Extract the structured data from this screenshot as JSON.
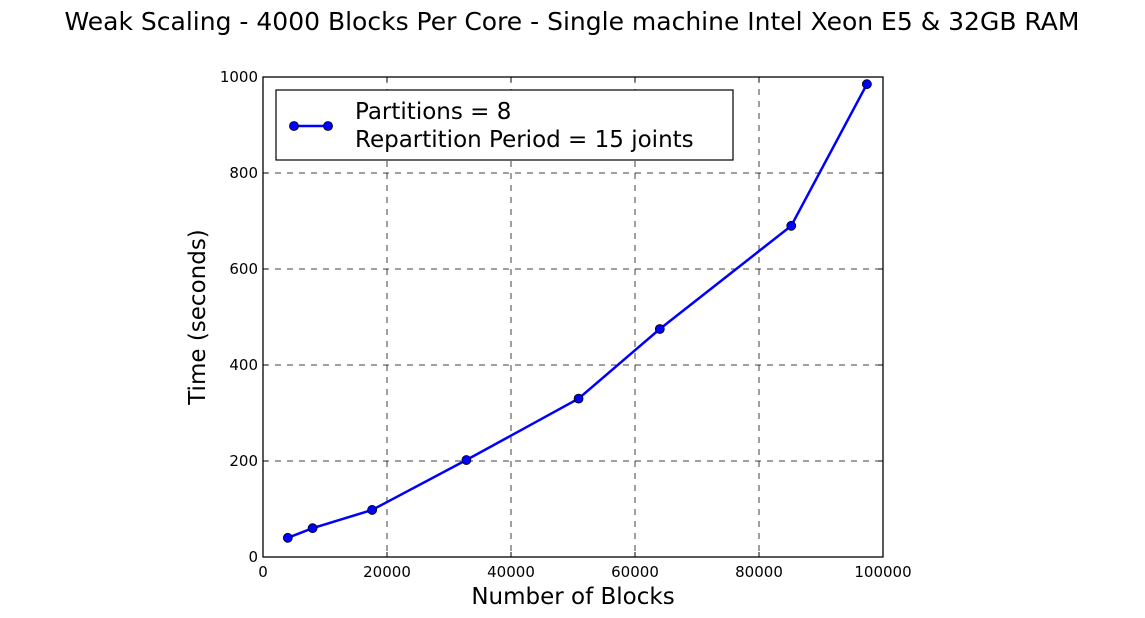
{
  "chart_data": {
    "type": "line",
    "title": "Weak Scaling - 4000 Blocks Per Core - Single machine Intel Xeon E5 & 32GB RAM",
    "xlabel": "Number of Blocks",
    "ylabel": "Time (seconds)",
    "xlim": [
      0,
      100000
    ],
    "ylim": [
      0,
      1000
    ],
    "xticks": [
      0,
      20000,
      40000,
      60000,
      80000,
      100000
    ],
    "yticks": [
      0,
      200,
      400,
      600,
      800,
      1000
    ],
    "xtick_labels": [
      "0",
      "20000",
      "40000",
      "60000",
      "80000",
      "100000"
    ],
    "ytick_labels": [
      "0",
      "200",
      "400",
      "600",
      "800",
      "1000"
    ],
    "grid": true,
    "legend_position": "top-left",
    "series": [
      {
        "name": "Partitions = 8\nRepartition Period = 15 joints",
        "legend_line1": "Partitions = 8",
        "legend_line2": "Repartition Period = 15 joints",
        "color": "#0000ff",
        "marker": "circle",
        "x": [
          4000,
          8000,
          17600,
          32800,
          50900,
          64000,
          85200,
          97400
        ],
        "y": [
          40,
          60,
          98,
          202,
          330,
          475,
          690,
          985
        ]
      }
    ]
  }
}
